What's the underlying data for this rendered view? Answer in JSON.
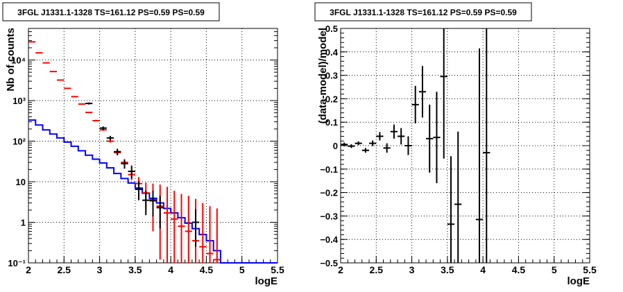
{
  "chart_data": [
    {
      "type": "line",
      "title": "3FGL J1331.1-1328 TS=161.12 PS=0.59 PS=0.59",
      "xlabel": "logE",
      "ylabel": "Nb of counts",
      "xlim": [
        2,
        5.5
      ],
      "ylim": [
        0.1,
        60000
      ],
      "yscale": "log",
      "grid": true,
      "x_ticks": [
        "2",
        "2.5",
        "3",
        "3.5",
        "4",
        "4.5",
        "5",
        "5.5"
      ],
      "y_ticks": [
        "10⁻¹",
        "1",
        "10",
        "10²",
        "10³",
        "10⁴"
      ],
      "bin_edges": [
        2.0,
        2.1,
        2.2,
        2.3,
        2.4,
        2.5,
        2.6,
        2.7,
        2.8,
        2.9,
        3.0,
        3.1,
        3.2,
        3.3,
        3.4,
        3.5,
        3.6,
        3.7,
        3.8,
        3.9,
        4.0,
        4.1,
        4.2,
        4.3,
        4.4,
        4.5,
        4.6,
        4.7,
        4.8,
        4.9,
        5.0,
        5.1,
        5.2,
        5.3,
        5.4,
        5.5
      ],
      "series": [
        {
          "color": "#0000ff",
          "style": "step",
          "values": [
            330,
            250,
            190,
            150,
            120,
            95,
            75,
            58,
            45,
            36,
            29,
            22,
            16,
            12,
            9.3,
            7.0,
            5.2,
            3.9,
            3.0,
            2.2,
            1.7,
            1.3,
            0.95,
            0.7,
            0.5,
            0.35,
            0.2,
            0.1,
            0.1,
            0.1,
            0.1,
            0.1,
            0.1,
            0.1,
            0.1
          ]
        },
        {
          "color": "#ff0000",
          "style": "markers",
          "x": [
            2.05,
            2.15,
            2.25,
            2.35,
            2.45,
            2.55,
            2.65,
            2.75,
            2.85,
            2.95,
            3.05,
            3.15,
            3.25,
            3.35,
            3.45,
            3.55,
            3.65,
            3.75,
            3.85,
            3.95,
            4.05,
            4.15,
            4.25,
            4.35,
            4.45,
            4.55,
            4.65
          ],
          "y": [
            28000,
            15000,
            8500,
            5200,
            3200,
            2000,
            1250,
            820,
            510,
            320,
            190,
            100,
            52,
            30,
            15,
            9.0,
            5.3,
            3.6,
            2.5,
            1.7,
            1.2,
            0.8,
            0.6,
            0.35,
            0.25,
            0.17,
            0.12
          ],
          "y_low": [
            27800,
            14800,
            8350,
            5100,
            3140,
            1960,
            1220,
            800,
            495,
            305,
            180,
            92,
            46,
            25,
            11,
            5.5,
            2.2,
            0.6,
            0.12,
            0.1,
            0.1,
            0.1,
            0.1,
            0.1,
            0.1,
            0.1,
            0.1
          ],
          "y_high": [
            28200,
            15200,
            8650,
            5300,
            3260,
            2040,
            1280,
            840,
            525,
            335,
            200,
            108,
            58,
            36,
            19,
            13,
            9.5,
            9.0,
            8.5,
            7.5,
            6.0,
            5.0,
            4.5,
            3.8,
            3.0,
            2.5,
            2.2
          ]
        },
        {
          "color": "#000000",
          "style": "markers",
          "x": [
            2.85,
            3.05,
            3.15,
            3.25,
            3.35,
            3.45,
            3.55,
            3.65,
            3.75,
            3.85,
            4.35
          ],
          "y": [
            850,
            210,
            120,
            55,
            28,
            18,
            6.5,
            3.5,
            3.4,
            2.3,
            1.0
          ],
          "y_low": [
            800,
            190,
            105,
            45,
            21,
            12,
            3.5,
            1.5,
            1.4,
            0.7,
            0.25
          ],
          "y_high": [
            900,
            230,
            135,
            65,
            35,
            25,
            10,
            6.0,
            6.0,
            4.5,
            2.1
          ]
        }
      ]
    },
    {
      "type": "scatter",
      "title": "3FGL J1331.1-1328 TS=161.12 PS=0.59 PS=0.59",
      "xlabel": "logE",
      "ylabel": "(data-model)/model",
      "xlim": [
        2,
        5.5
      ],
      "ylim": [
        -0.5,
        0.5
      ],
      "grid": true,
      "x_ticks": [
        "2",
        "2.5",
        "3",
        "3.5",
        "4",
        "4.5",
        "5",
        "5.5"
      ],
      "y_ticks": [
        "−0.5",
        "−0.4",
        "−0.3",
        "−0.2",
        "−0.1",
        "0",
        "0.1",
        "0.2",
        "0.3",
        "0.4",
        "0.5"
      ],
      "series": [
        {
          "color": "#000000",
          "x": [
            2.05,
            2.15,
            2.25,
            2.35,
            2.45,
            2.55,
            2.65,
            2.75,
            2.85,
            2.95,
            3.05,
            3.15,
            3.25,
            3.35,
            3.45,
            3.55,
            3.65,
            3.95,
            4.05
          ],
          "y": [
            0.005,
            -0.002,
            0.01,
            -0.02,
            0.01,
            0.04,
            -0.01,
            0.06,
            0.04,
            0.0,
            0.175,
            0.23,
            0.03,
            0.035,
            0.295,
            -0.335,
            -0.25,
            -0.315,
            -0.03
          ],
          "y_err": [
            0.008,
            0.008,
            0.008,
            0.01,
            0.012,
            0.018,
            0.02,
            0.03,
            0.035,
            0.04,
            0.08,
            0.11,
            0.145,
            0.195,
            0.35,
            0.29,
            0.31,
            0.73,
            0.65
          ],
          "x_half": [
            0.05,
            0.05,
            0.05,
            0.05,
            0.05,
            0.05,
            0.05,
            0.05,
            0.05,
            0.05,
            0.05,
            0.05,
            0.05,
            0.05,
            0.05,
            0.05,
            0.05,
            0.05,
            0.05
          ]
        }
      ]
    }
  ]
}
